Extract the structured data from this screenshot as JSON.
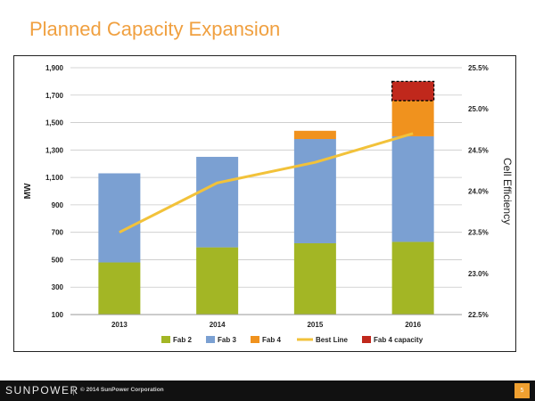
{
  "slide": {
    "title": "Planned Capacity Expansion",
    "slide_number": "5"
  },
  "footer": {
    "brand": "SUNPOWER",
    "separator": "|",
    "copyright": "© 2014 SunPower Corporation"
  },
  "chart_data": {
    "type": "bar",
    "stacked": true,
    "categories": [
      "2013",
      "2014",
      "2015",
      "2016"
    ],
    "ylabel": "MW",
    "y2label": "Cell Efficiency",
    "ylim": [
      100,
      1900
    ],
    "yticks": [
      "100",
      "300",
      "500",
      "700",
      "900",
      "1,100",
      "1,300",
      "1,500",
      "1,700",
      "1,900"
    ],
    "y2lim": [
      22.5,
      25.5
    ],
    "y2ticks": [
      "22.5%",
      "23.0%",
      "23.5%",
      "24.0%",
      "24.5%",
      "25.0%",
      "25.5%"
    ],
    "grid": true,
    "legend_position": "bottom",
    "series": [
      {
        "name": "Fab 2",
        "color": "#a3b625",
        "values": [
          480,
          590,
          620,
          630
        ]
      },
      {
        "name": "Fab 3",
        "color": "#7ba0d2",
        "values": [
          650,
          660,
          760,
          770
        ]
      },
      {
        "name": "Fab 4",
        "color": "#f0921e",
        "values": [
          0,
          0,
          60,
          260
        ]
      },
      {
        "name": "Fab 4 capacity",
        "color": "#c0281c",
        "values": [
          0,
          0,
          0,
          140
        ],
        "style": "dashed-outline"
      }
    ],
    "line_series": [
      {
        "name": "Best Line",
        "color": "#f2c23a",
        "axis": "right",
        "values": [
          23.5,
          24.1,
          24.35,
          24.7
        ]
      }
    ],
    "legend_order": [
      "Fab 2",
      "Fab 3",
      "Fab 4",
      "Best Line",
      "Fab 4 capacity"
    ]
  }
}
